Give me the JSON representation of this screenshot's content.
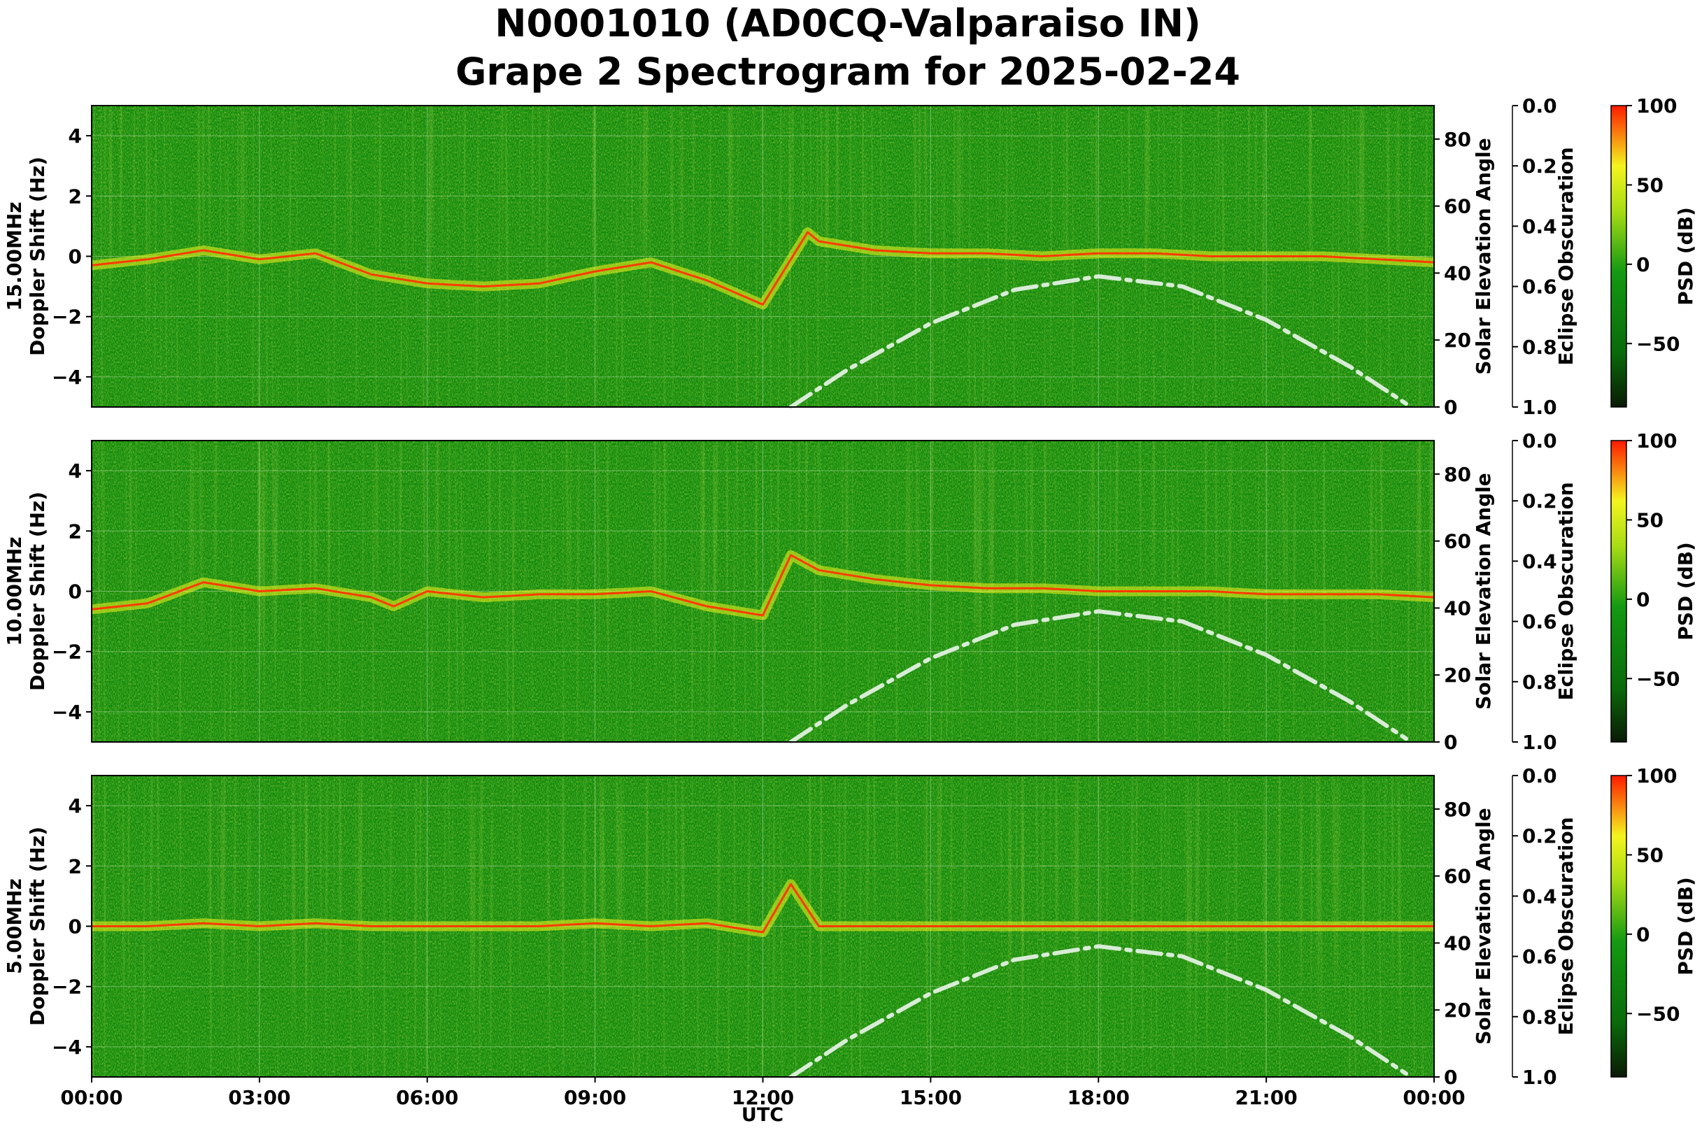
{
  "chart_data": {
    "type": "heatmap",
    "title": [
      "N0001010 (AD0CQ-Valparaiso IN)",
      "Grape 2 Spectrogram for 2025-02-24"
    ],
    "xlabel": "UTC",
    "x_ticks": [
      "00:00",
      "03:00",
      "06:00",
      "09:00",
      "12:00",
      "15:00",
      "18:00",
      "21:00",
      "00:00"
    ],
    "xlim_hours": [
      0,
      24
    ],
    "ylabel_common": "Doppler Shift (Hz)",
    "ylim": [
      -5,
      5
    ],
    "y_ticks": [
      "4",
      "2",
      "0",
      "−2",
      "−4"
    ],
    "y_tick_values": [
      4,
      2,
      0,
      -2,
      -4
    ],
    "solar_axis": {
      "label": "Solar Elevation Angle",
      "ylim": [
        0,
        90
      ],
      "ticks": [
        "80",
        "60",
        "40",
        "20",
        "0"
      ],
      "tick_values": [
        80,
        60,
        40,
        20,
        0
      ]
    },
    "eclipse_axis": {
      "label": "Eclipse Obscuration",
      "ylim": [
        1.0,
        0.0
      ],
      "ticks": [
        "0.0",
        "0.2",
        "0.4",
        "0.6",
        "0.8",
        "1.0"
      ],
      "tick_values": [
        0,
        0.2,
        0.4,
        0.6,
        0.8,
        1.0
      ]
    },
    "colorbar": {
      "label": "PSD (dB)",
      "range": [
        -90,
        100
      ],
      "ticks": [
        "100",
        "50",
        "0",
        "−50"
      ],
      "tick_values": [
        100,
        50,
        0,
        -50
      ],
      "colors": [
        "#0a1a05",
        "#0a8a0a",
        "#7fd011",
        "#f4f41e",
        "#ff2a00"
      ]
    },
    "grid": true,
    "panels": [
      {
        "freq_label": "15.00MHz",
        "doppler_trace": {
          "hours": [
            0,
            1,
            2,
            3,
            4,
            5,
            6,
            7,
            8,
            9,
            10,
            11,
            12,
            12.8,
            13,
            14,
            15,
            16,
            17,
            18,
            19,
            20,
            21,
            22,
            23,
            24
          ],
          "hz": [
            -0.3,
            -0.1,
            0.2,
            -0.1,
            0.1,
            -0.6,
            -0.9,
            -1.0,
            -0.9,
            -0.5,
            -0.2,
            -0.8,
            -1.6,
            0.8,
            0.5,
            0.2,
            0.1,
            0.1,
            0.0,
            0.1,
            0.1,
            0.0,
            0.0,
            0.0,
            -0.1,
            -0.2
          ]
        },
        "solar_elevation": {
          "hours": [
            12.5,
            13.5,
            15,
            16.5,
            18,
            19.5,
            21,
            22.5,
            23.5
          ],
          "deg": [
            0,
            11,
            25,
            35,
            39,
            36,
            26,
            12,
            1
          ]
        }
      },
      {
        "freq_label": "10.00MHz",
        "doppler_trace": {
          "hours": [
            0,
            1,
            2,
            3,
            4,
            5,
            5.4,
            6,
            7,
            8,
            9,
            10,
            11,
            12,
            12.5,
            13,
            14,
            15,
            16,
            17,
            18,
            19,
            20,
            21,
            22,
            23,
            24
          ],
          "hz": [
            -0.6,
            -0.4,
            0.3,
            0.0,
            0.1,
            -0.2,
            -0.5,
            0.0,
            -0.2,
            -0.1,
            -0.1,
            0.0,
            -0.5,
            -0.8,
            1.2,
            0.7,
            0.4,
            0.2,
            0.1,
            0.1,
            0.0,
            0.0,
            0.0,
            -0.1,
            -0.1,
            -0.1,
            -0.2
          ]
        },
        "solar_elevation": {
          "hours": [
            12.5,
            13.5,
            15,
            16.5,
            18,
            19.5,
            21,
            22.5,
            23.5
          ],
          "deg": [
            0,
            11,
            25,
            35,
            39,
            36,
            26,
            12,
            1
          ]
        }
      },
      {
        "freq_label": "5.00MHz",
        "doppler_trace": {
          "hours": [
            0,
            1,
            2,
            3,
            4,
            5,
            6,
            7,
            8,
            9,
            10,
            11,
            12,
            12.5,
            13,
            14,
            15,
            16,
            17,
            18,
            19,
            20,
            21,
            22,
            23,
            24
          ],
          "hz": [
            0.0,
            0.0,
            0.1,
            0.0,
            0.1,
            0.0,
            0.0,
            0.0,
            0.0,
            0.1,
            0.0,
            0.1,
            -0.2,
            1.4,
            0.0,
            0.0,
            0.0,
            0.0,
            0.0,
            0.0,
            0.0,
            0.0,
            0.0,
            0.0,
            0.0,
            0.0
          ]
        },
        "solar_elevation": {
          "hours": [
            12.5,
            13.5,
            15,
            16.5,
            18,
            19.5,
            21,
            22.5,
            23.5
          ],
          "deg": [
            0,
            11,
            25,
            35,
            39,
            36,
            26,
            12,
            1
          ]
        }
      }
    ]
  }
}
